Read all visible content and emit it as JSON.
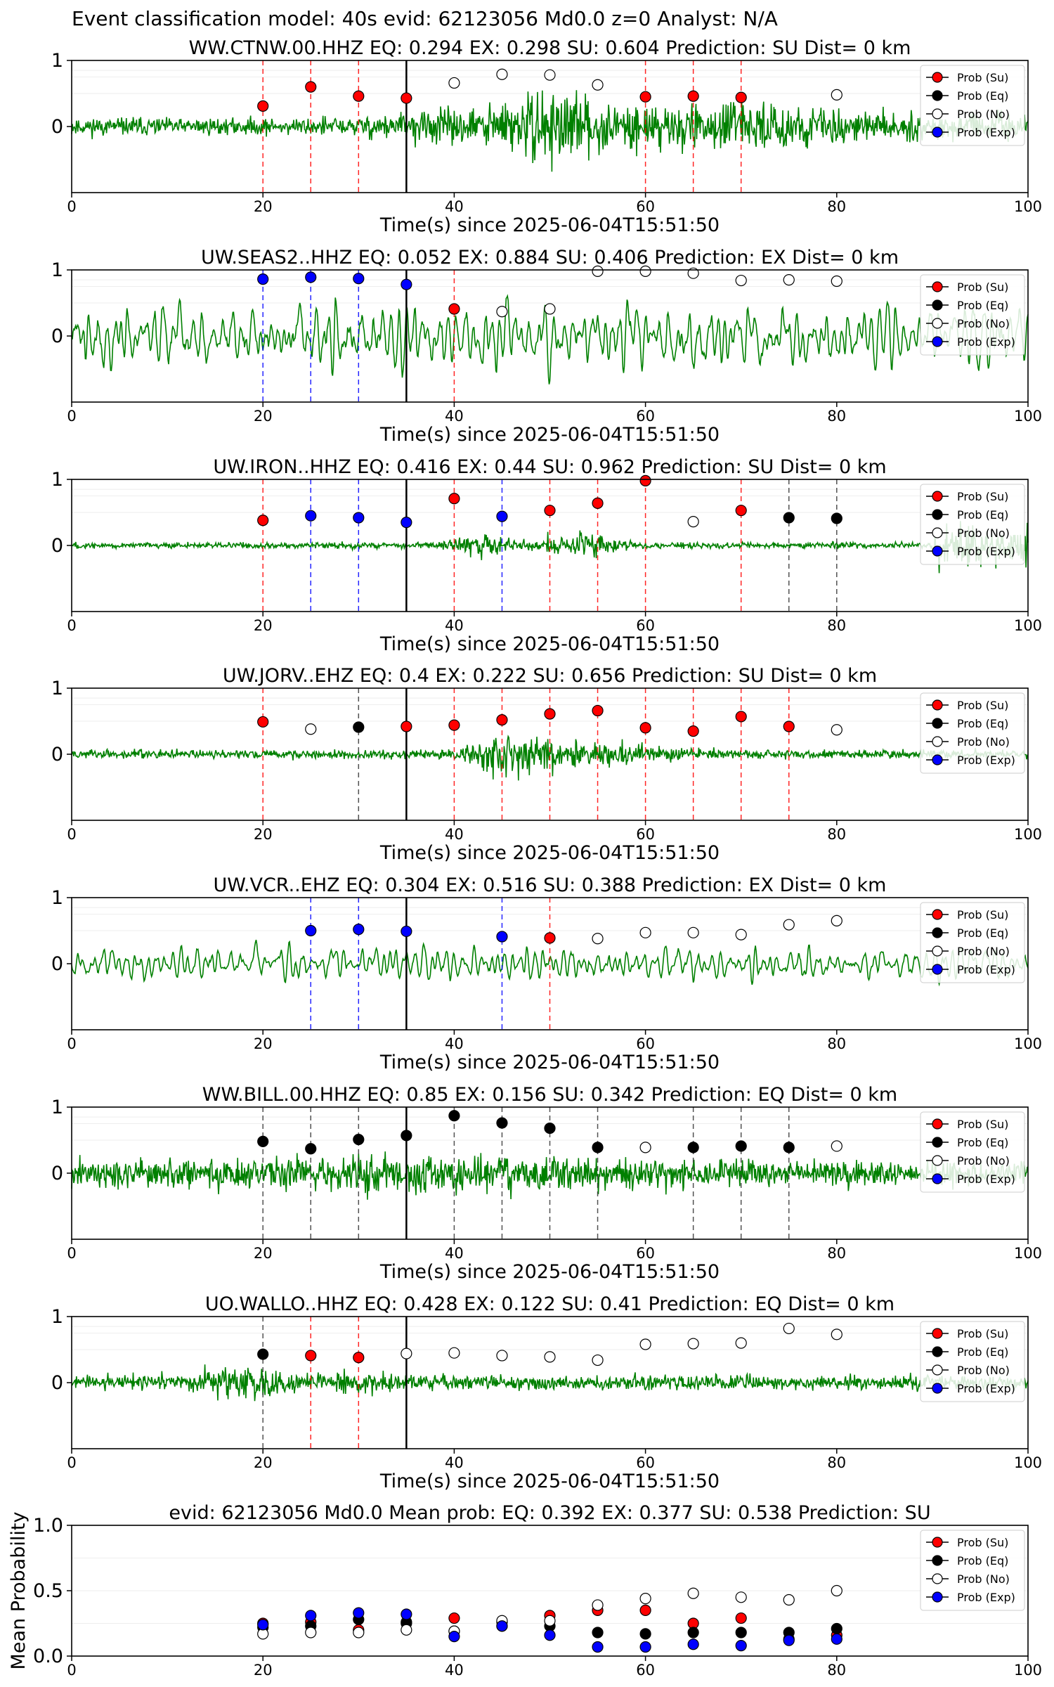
{
  "header": {
    "title": "Event classification model: 40s evid: 62123056 Md0.0 z=0 Analyst: N/A"
  },
  "legend": [
    {
      "label": "Prob (Su)",
      "color": "#ff0000"
    },
    {
      "label": "Prob (Eq)",
      "color": "#000000"
    },
    {
      "label": "Prob (No)",
      "color": "#ffffff"
    },
    {
      "label": "Prob (Exp)",
      "color": "#0000ff"
    }
  ],
  "colors": {
    "waveform": "#008000",
    "su": "#ff0000",
    "eq": "#000000",
    "no": "#ffffff",
    "exp": "#0000ff",
    "event_line": "#000000"
  },
  "chart_data": [
    {
      "type": "line",
      "title": "WW.CTNW.00.HHZ   EQ: 0.294  EX: 0.298  SU: 0.604   Prediction: SU    Dist= 0 km",
      "xlabel": "Time(s) since 2025-06-04T15:51:50",
      "xlim": [
        0,
        100
      ],
      "ylim": [
        -1,
        1
      ],
      "xticks": [
        "0",
        "20",
        "40",
        "60",
        "80",
        "100"
      ],
      "yticks": [
        "1",
        "0"
      ],
      "event_time": 35,
      "waveform": {
        "seed": 11,
        "amp": 0.3,
        "style": "emergent"
      },
      "points": [
        {
          "t": 20,
          "p": 0.31,
          "cls": "su"
        },
        {
          "t": 25,
          "p": 0.6,
          "cls": "su"
        },
        {
          "t": 30,
          "p": 0.46,
          "cls": "su"
        },
        {
          "t": 35,
          "p": 0.43,
          "cls": "su"
        },
        {
          "t": 40,
          "p": 0.66,
          "cls": "no"
        },
        {
          "t": 45,
          "p": 0.79,
          "cls": "no"
        },
        {
          "t": 50,
          "p": 0.78,
          "cls": "no"
        },
        {
          "t": 55,
          "p": 0.63,
          "cls": "no"
        },
        {
          "t": 60,
          "p": 0.45,
          "cls": "su"
        },
        {
          "t": 65,
          "p": 0.46,
          "cls": "su"
        },
        {
          "t": 70,
          "p": 0.44,
          "cls": "su"
        },
        {
          "t": 80,
          "p": 0.48,
          "cls": "no"
        }
      ]
    },
    {
      "type": "line",
      "title": "UW.SEAS2..HHZ   EQ: 0.052  EX: 0.884  SU: 0.406   Prediction: EX    Dist= 0 km",
      "xlabel": "Time(s) since 2025-06-04T15:51:50",
      "xlim": [
        0,
        100
      ],
      "ylim": [
        -1,
        1
      ],
      "xticks": [
        "0",
        "20",
        "40",
        "60",
        "80",
        "100"
      ],
      "yticks": [
        "1",
        "0"
      ],
      "event_time": 35,
      "waveform": {
        "seed": 22,
        "amp": 0.62,
        "style": "smooth"
      },
      "points": [
        {
          "t": 20,
          "p": 0.86,
          "cls": "exp"
        },
        {
          "t": 25,
          "p": 0.89,
          "cls": "exp"
        },
        {
          "t": 30,
          "p": 0.87,
          "cls": "exp"
        },
        {
          "t": 35,
          "p": 0.78,
          "cls": "exp"
        },
        {
          "t": 40,
          "p": 0.41,
          "cls": "su"
        },
        {
          "t": 45,
          "p": 0.37,
          "cls": "no"
        },
        {
          "t": 50,
          "p": 0.41,
          "cls": "no"
        },
        {
          "t": 55,
          "p": 0.98,
          "cls": "no"
        },
        {
          "t": 60,
          "p": 0.98,
          "cls": "no"
        },
        {
          "t": 65,
          "p": 0.95,
          "cls": "no"
        },
        {
          "t": 70,
          "p": 0.84,
          "cls": "no"
        },
        {
          "t": 75,
          "p": 0.85,
          "cls": "no"
        },
        {
          "t": 80,
          "p": 0.83,
          "cls": "no"
        }
      ]
    },
    {
      "type": "line",
      "title": "UW.IRON..HHZ   EQ: 0.416  EX: 0.44  SU: 0.962   Prediction: SU    Dist= 0 km",
      "xlabel": "Time(s) since 2025-06-04T15:51:50",
      "xlim": [
        0,
        100
      ],
      "ylim": [
        -1,
        1
      ],
      "xticks": [
        "0",
        "20",
        "40",
        "60",
        "80",
        "100"
      ],
      "yticks": [
        "1",
        "0"
      ],
      "event_time": 35,
      "waveform": {
        "seed": 33,
        "amp": 0.18,
        "style": "burst2"
      },
      "points": [
        {
          "t": 20,
          "p": 0.38,
          "cls": "su"
        },
        {
          "t": 25,
          "p": 0.45,
          "cls": "exp"
        },
        {
          "t": 30,
          "p": 0.42,
          "cls": "exp"
        },
        {
          "t": 35,
          "p": 0.35,
          "cls": "exp"
        },
        {
          "t": 40,
          "p": 0.71,
          "cls": "su"
        },
        {
          "t": 45,
          "p": 0.44,
          "cls": "exp"
        },
        {
          "t": 50,
          "p": 0.53,
          "cls": "su"
        },
        {
          "t": 55,
          "p": 0.64,
          "cls": "su"
        },
        {
          "t": 60,
          "p": 0.98,
          "cls": "su"
        },
        {
          "t": 65,
          "p": 0.36,
          "cls": "no"
        },
        {
          "t": 70,
          "p": 0.53,
          "cls": "su"
        },
        {
          "t": 75,
          "p": 0.42,
          "cls": "eq"
        },
        {
          "t": 80,
          "p": 0.41,
          "cls": "eq"
        }
      ]
    },
    {
      "type": "line",
      "title": "UW.JORV..EHZ   EQ: 0.4  EX: 0.222  SU: 0.656   Prediction: SU    Dist= 0 km",
      "xlabel": "Time(s) since 2025-06-04T15:51:50",
      "xlim": [
        0,
        100
      ],
      "ylim": [
        -1,
        1
      ],
      "xticks": [
        "0",
        "20",
        "40",
        "60",
        "80",
        "100"
      ],
      "yticks": [
        "1",
        "0"
      ],
      "event_time": 35,
      "waveform": {
        "seed": 44,
        "amp": 0.2,
        "style": "burst"
      },
      "points": [
        {
          "t": 20,
          "p": 0.49,
          "cls": "su"
        },
        {
          "t": 25,
          "p": 0.38,
          "cls": "no"
        },
        {
          "t": 30,
          "p": 0.41,
          "cls": "eq"
        },
        {
          "t": 35,
          "p": 0.42,
          "cls": "su"
        },
        {
          "t": 40,
          "p": 0.44,
          "cls": "su"
        },
        {
          "t": 45,
          "p": 0.52,
          "cls": "su"
        },
        {
          "t": 50,
          "p": 0.61,
          "cls": "su"
        },
        {
          "t": 55,
          "p": 0.66,
          "cls": "su"
        },
        {
          "t": 60,
          "p": 0.4,
          "cls": "su"
        },
        {
          "t": 65,
          "p": 0.35,
          "cls": "su"
        },
        {
          "t": 70,
          "p": 0.57,
          "cls": "su"
        },
        {
          "t": 75,
          "p": 0.42,
          "cls": "su"
        },
        {
          "t": 80,
          "p": 0.37,
          "cls": "no"
        }
      ]
    },
    {
      "type": "line",
      "title": "UW.VCR..EHZ   EQ: 0.304  EX: 0.516  SU: 0.388   Prediction: EX    Dist= 0 km",
      "xlabel": "Time(s) since 2025-06-04T15:51:50",
      "xlim": [
        0,
        100
      ],
      "ylim": [
        -1,
        1
      ],
      "xticks": [
        "0",
        "20",
        "40",
        "60",
        "80",
        "100"
      ],
      "yticks": [
        "1",
        "0"
      ],
      "event_time": 35,
      "waveform": {
        "seed": 55,
        "amp": 0.3,
        "style": "smooth"
      },
      "points": [
        {
          "t": 25,
          "p": 0.5,
          "cls": "exp"
        },
        {
          "t": 30,
          "p": 0.52,
          "cls": "exp"
        },
        {
          "t": 35,
          "p": 0.49,
          "cls": "exp"
        },
        {
          "t": 45,
          "p": 0.41,
          "cls": "exp"
        },
        {
          "t": 50,
          "p": 0.39,
          "cls": "su"
        },
        {
          "t": 55,
          "p": 0.38,
          "cls": "no"
        },
        {
          "t": 60,
          "p": 0.47,
          "cls": "no"
        },
        {
          "t": 65,
          "p": 0.47,
          "cls": "no"
        },
        {
          "t": 70,
          "p": 0.44,
          "cls": "no"
        },
        {
          "t": 75,
          "p": 0.59,
          "cls": "no"
        },
        {
          "t": 80,
          "p": 0.65,
          "cls": "no"
        }
      ]
    },
    {
      "type": "line",
      "title": "WW.BILL.00.HHZ   EQ: 0.85  EX: 0.156  SU: 0.342   Prediction: EQ    Dist= 0 km",
      "xlabel": "Time(s) since 2025-06-04T15:51:50",
      "xlim": [
        0,
        100
      ],
      "ylim": [
        -1,
        1
      ],
      "xticks": [
        "0",
        "20",
        "40",
        "60",
        "80",
        "100"
      ],
      "yticks": [
        "1",
        "0"
      ],
      "event_time": 35,
      "waveform": {
        "seed": 66,
        "amp": 0.32,
        "style": "noisy"
      },
      "points": [
        {
          "t": 20,
          "p": 0.48,
          "cls": "eq"
        },
        {
          "t": 25,
          "p": 0.37,
          "cls": "eq"
        },
        {
          "t": 30,
          "p": 0.51,
          "cls": "eq"
        },
        {
          "t": 35,
          "p": 0.57,
          "cls": "eq"
        },
        {
          "t": 40,
          "p": 0.87,
          "cls": "eq"
        },
        {
          "t": 45,
          "p": 0.76,
          "cls": "eq"
        },
        {
          "t": 50,
          "p": 0.68,
          "cls": "eq"
        },
        {
          "t": 55,
          "p": 0.39,
          "cls": "eq"
        },
        {
          "t": 60,
          "p": 0.39,
          "cls": "no"
        },
        {
          "t": 65,
          "p": 0.39,
          "cls": "eq"
        },
        {
          "t": 70,
          "p": 0.41,
          "cls": "eq"
        },
        {
          "t": 75,
          "p": 0.39,
          "cls": "eq"
        },
        {
          "t": 80,
          "p": 0.41,
          "cls": "no"
        }
      ]
    },
    {
      "type": "line",
      "title": "UO.WALLO..HHZ   EQ: 0.428  EX: 0.122  SU: 0.41   Prediction: EQ    Dist= 0 km",
      "xlabel": "Time(s) since 2025-06-04T15:51:50",
      "xlim": [
        0,
        100
      ],
      "ylim": [
        -1,
        1
      ],
      "xticks": [
        "0",
        "20",
        "40",
        "60",
        "80",
        "100"
      ],
      "yticks": [
        "1",
        "0"
      ],
      "event_time": 35,
      "waveform": {
        "seed": 77,
        "amp": 0.22,
        "style": "early"
      },
      "points": [
        {
          "t": 20,
          "p": 0.43,
          "cls": "eq"
        },
        {
          "t": 25,
          "p": 0.41,
          "cls": "su"
        },
        {
          "t": 30,
          "p": 0.38,
          "cls": "su"
        },
        {
          "t": 35,
          "p": 0.44,
          "cls": "no"
        },
        {
          "t": 40,
          "p": 0.45,
          "cls": "no"
        },
        {
          "t": 45,
          "p": 0.41,
          "cls": "no"
        },
        {
          "t": 50,
          "p": 0.39,
          "cls": "no"
        },
        {
          "t": 55,
          "p": 0.34,
          "cls": "no"
        },
        {
          "t": 60,
          "p": 0.58,
          "cls": "no"
        },
        {
          "t": 65,
          "p": 0.59,
          "cls": "no"
        },
        {
          "t": 70,
          "p": 0.6,
          "cls": "no"
        },
        {
          "t": 75,
          "p": 0.82,
          "cls": "no"
        },
        {
          "t": 80,
          "p": 0.73,
          "cls": "no"
        }
      ]
    },
    {
      "type": "scatter",
      "title": "evid: 62123056  Md0.0   Mean prob:   EQ: 0.392  EX: 0.377  SU: 0.538   Prediction: SU",
      "xlabel": "",
      "ylabel": "Mean Probability",
      "xlim": [
        0,
        100
      ],
      "ylim": [
        0,
        1
      ],
      "xticks": [
        "0",
        "20",
        "40",
        "60",
        "80",
        "100"
      ],
      "yticks": [
        "0.0",
        "0.5",
        "1.0"
      ],
      "x": [
        20,
        25,
        30,
        35,
        40,
        45,
        50,
        55,
        60,
        65,
        70,
        75,
        80
      ],
      "series": [
        {
          "name": "Prob (Su)",
          "cls": "su",
          "values": [
            0.25,
            0.26,
            0.2,
            0.25,
            0.29,
            0.26,
            0.31,
            0.35,
            0.35,
            0.25,
            0.29,
            0.13,
            0.16
          ]
        },
        {
          "name": "Prob (Eq)",
          "cls": "eq",
          "values": [
            0.22,
            0.23,
            0.28,
            0.26,
            0.19,
            0.23,
            0.23,
            0.18,
            0.17,
            0.18,
            0.18,
            0.18,
            0.21
          ]
        },
        {
          "name": "Prob (No)",
          "cls": "no",
          "values": [
            0.17,
            0.18,
            0.18,
            0.2,
            0.19,
            0.27,
            0.27,
            0.39,
            0.44,
            0.48,
            0.45,
            0.43,
            0.5
          ]
        },
        {
          "name": "Prob (Exp)",
          "cls": "exp",
          "values": [
            0.24,
            0.31,
            0.33,
            0.32,
            0.15,
            0.23,
            0.16,
            0.07,
            0.07,
            0.09,
            0.08,
            0.12,
            0.13
          ]
        }
      ]
    }
  ]
}
